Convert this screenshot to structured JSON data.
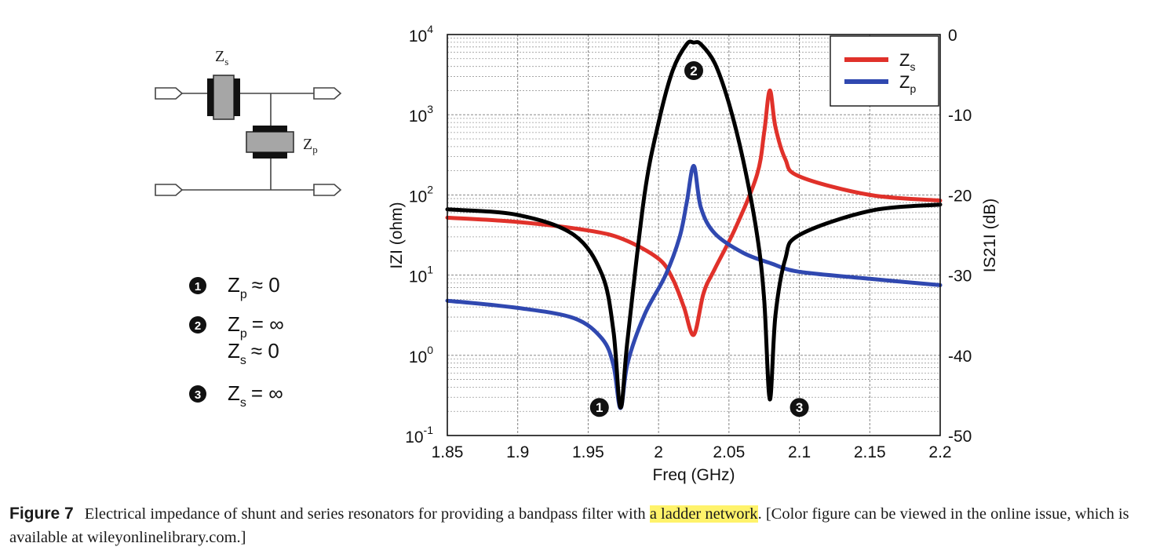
{
  "circuit": {
    "zs_label": "Z",
    "zs_sub": "s",
    "zp_label": "Z",
    "zp_sub": "p"
  },
  "conditions": [
    {
      "marker": "1",
      "lines": [
        {
          "sym": "Z",
          "sub": "p",
          "rel": "≈ 0"
        }
      ]
    },
    {
      "marker": "2",
      "lines": [
        {
          "sym": "Z",
          "sub": "p",
          "rel": "= ∞"
        },
        {
          "sym": "Z",
          "sub": "s",
          "rel": "≈ 0"
        }
      ]
    },
    {
      "marker": "3",
      "lines": [
        {
          "sym": "Z",
          "sub": "s",
          "rel": "= ∞"
        }
      ]
    }
  ],
  "chart_data": {
    "type": "line",
    "xlabel": "Freq (GHz)",
    "ylabel_left": "IZI (ohm)",
    "ylabel_right": "IS21I (dB)",
    "xlim": [
      1.85,
      2.2
    ],
    "x_ticks": [
      "1.85",
      "1.9",
      "1.95",
      "2",
      "2.05",
      "2.1",
      "2.15",
      "2.2"
    ],
    "ylim_left_log10": [
      -1,
      4
    ],
    "y_ticks_left": [
      {
        "base": "10",
        "exp": "4"
      },
      {
        "base": "10",
        "exp": "3"
      },
      {
        "base": "10",
        "exp": "2"
      },
      {
        "base": "10",
        "exp": "1"
      },
      {
        "base": "10",
        "exp": "0"
      },
      {
        "base": "10",
        "exp": "-1"
      }
    ],
    "ylim_right": [
      -50,
      0
    ],
    "y_ticks_right": [
      "0",
      "-10",
      "-20",
      "-30",
      "-40",
      "-50"
    ],
    "grid": true,
    "log_scale_left": true,
    "legend": {
      "placement": "top-right",
      "entries": [
        {
          "sym": "Z",
          "sub": "s",
          "color": "#e0312a"
        },
        {
          "sym": "Z",
          "sub": "p",
          "color": "#3048b0"
        }
      ]
    },
    "series": [
      {
        "name": "Zs",
        "axis": "left",
        "color": "#e0312a",
        "x": [
          1.85,
          1.9,
          1.95,
          1.975,
          2.0,
          2.01,
          2.018,
          2.025,
          2.032,
          2.04,
          2.055,
          2.07,
          2.075,
          2.079,
          2.083,
          2.09,
          2.1,
          2.15,
          2.2
        ],
        "y": [
          52,
          46,
          36,
          28,
          16,
          9,
          4,
          1.8,
          6,
          12,
          40,
          180,
          600,
          2000,
          700,
          280,
          170,
          100,
          85
        ]
      },
      {
        "name": "Zp",
        "axis": "left",
        "color": "#3048b0",
        "x": [
          1.85,
          1.9,
          1.94,
          1.96,
          1.968,
          1.973,
          1.978,
          1.99,
          2.005,
          2.015,
          2.02,
          2.025,
          2.03,
          2.04,
          2.06,
          2.08,
          2.1,
          2.15,
          2.2
        ],
        "y": [
          4.8,
          3.9,
          2.9,
          1.6,
          0.75,
          0.22,
          0.8,
          3.2,
          10,
          30,
          80,
          230,
          70,
          33,
          19,
          14,
          11,
          9,
          7.5
        ]
      },
      {
        "name": "S21",
        "axis": "right",
        "color": "#000000",
        "x": [
          1.85,
          1.9,
          1.94,
          1.96,
          1.968,
          1.973,
          1.978,
          1.99,
          2.0,
          2.01,
          2.02,
          2.025,
          2.03,
          2.04,
          2.05,
          2.06,
          2.07,
          2.075,
          2.079,
          2.083,
          2.09,
          2.1,
          2.15,
          2.2
        ],
        "y": [
          -21.8,
          -22.5,
          -25,
          -30,
          -37,
          -46.5,
          -38,
          -20,
          -11,
          -4.5,
          -1.2,
          -1.0,
          -1.2,
          -3.6,
          -8.6,
          -15.6,
          -25,
          -33,
          -45.5,
          -35,
          -28,
          -25,
          -22,
          -21.2
        ]
      }
    ],
    "markers": [
      {
        "label": "1",
        "x": 1.958,
        "log10y": -0.65
      },
      {
        "label": "2",
        "x": 2.025,
        "log10y": 3.55
      },
      {
        "label": "3",
        "x": 2.1,
        "log10y": -0.65
      }
    ]
  },
  "caption": {
    "fig_label": "Figure 7",
    "text_before": "Electrical impedance of shunt and series resonators for providing a bandpass filter with ",
    "highlight": "a ladder network",
    "text_after": ". [Color figure can be viewed in the online issue, which is available at wileyonlinelibrary.com.]"
  }
}
